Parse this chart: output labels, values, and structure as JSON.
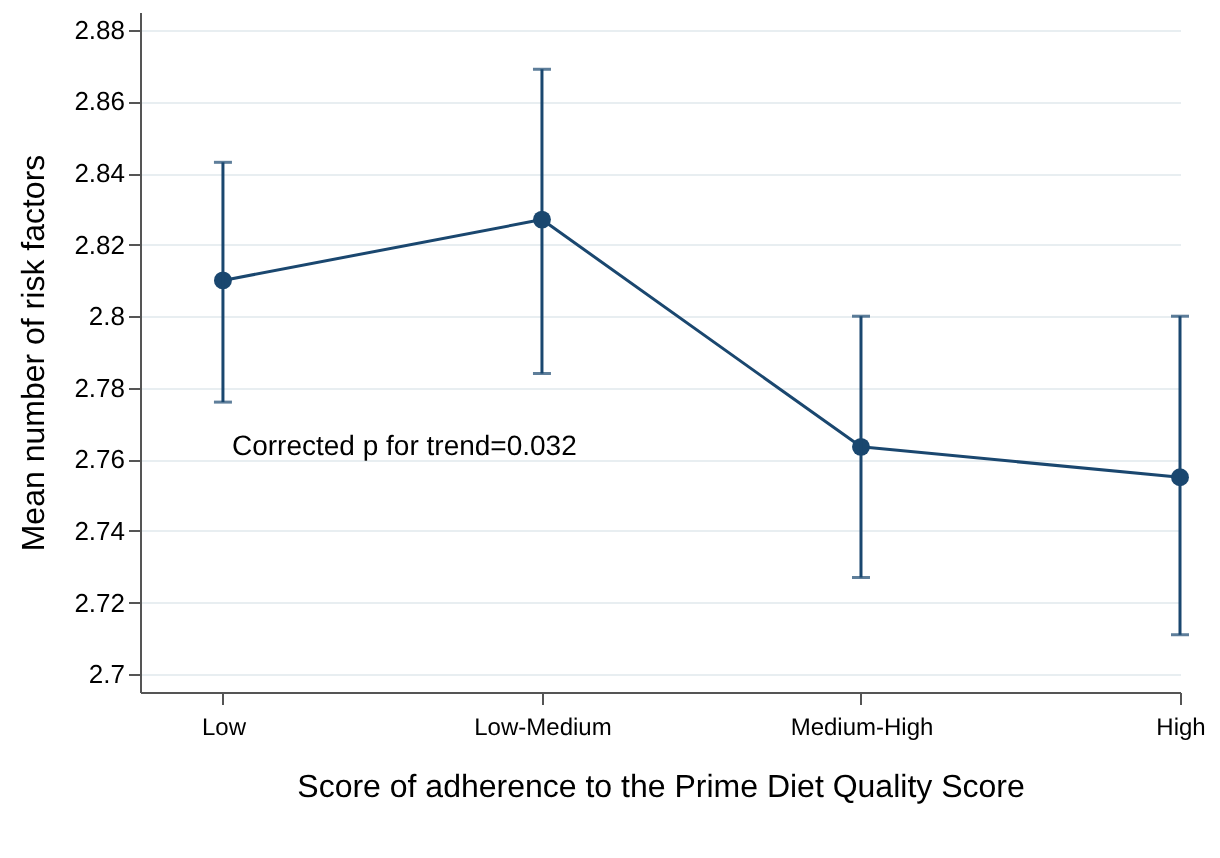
{
  "chart_data": {
    "type": "line",
    "xlabel": "Score of adherence to the Prime Diet Quality Score",
    "ylabel": "Mean number of risk factors",
    "categories": [
      "Low",
      "Low-Medium",
      "Medium-High",
      "High"
    ],
    "series": [
      {
        "color": "#1a476f",
        "values": [
          2.81,
          2.827,
          2.7635,
          2.755
        ],
        "errors": [
          [
            2.776,
            2.843
          ],
          [
            2.784,
            2.869
          ],
          [
            2.727,
            2.8
          ],
          [
            2.711,
            2.8
          ]
        ]
      }
    ],
    "ylim": [
      2.695,
      2.885
    ],
    "yticks": [
      2.7,
      2.72,
      2.74,
      2.76,
      2.78,
      2.8,
      2.82,
      2.84,
      2.86,
      2.88
    ],
    "grid": "y",
    "marker": "circle",
    "line_style": "solid",
    "annotations": [
      "Corrected p for trend=0.032"
    ]
  }
}
